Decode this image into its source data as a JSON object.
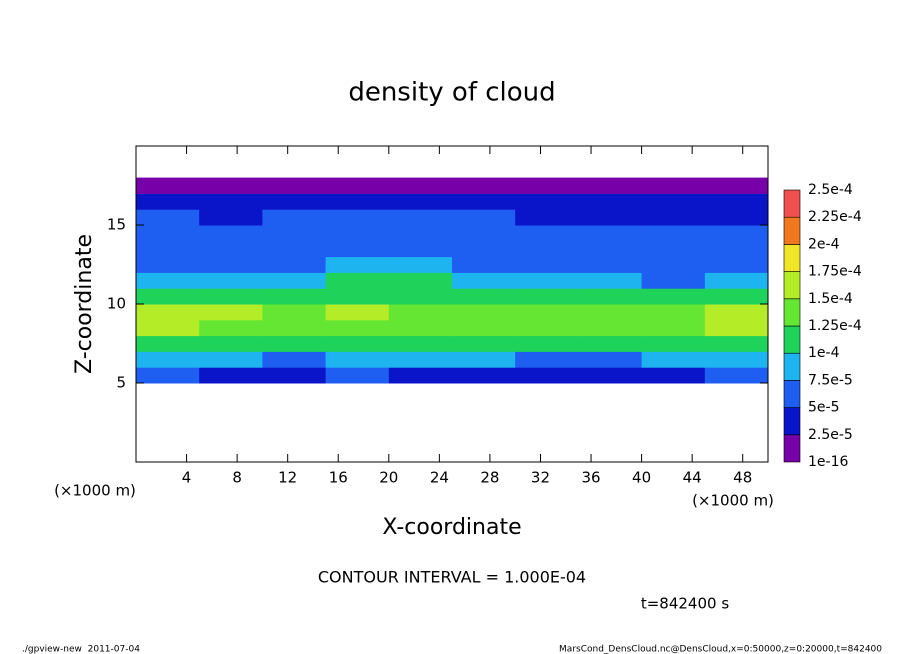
{
  "chart_data": {
    "type": "heatmap",
    "title": "density of cloud",
    "xlabel": "X-coordinate",
    "ylabel": "Z-coordinate",
    "x_unit": "(×1000 m)",
    "y_unit": "(×1000 m)",
    "xlim": [
      0,
      50
    ],
    "ylim": [
      0,
      20
    ],
    "xticks": [
      4,
      8,
      12,
      16,
      20,
      24,
      28,
      32,
      36,
      40,
      44,
      48
    ],
    "yticks": [
      5,
      10,
      15
    ],
    "xbins": [
      0,
      5,
      10,
      15,
      20,
      25,
      30,
      35,
      40,
      45,
      50
    ],
    "zbins": [
      0,
      1,
      2,
      3,
      4,
      5,
      6,
      7,
      8,
      9,
      10,
      11,
      12,
      13,
      14,
      15,
      16,
      17,
      18,
      19,
      20
    ],
    "values": [
      [
        null,
        null,
        null,
        null,
        null,
        null,
        null,
        null,
        null,
        null
      ],
      [
        null,
        null,
        null,
        null,
        null,
        null,
        null,
        null,
        null,
        null
      ],
      [
        null,
        null,
        null,
        null,
        null,
        null,
        null,
        null,
        null,
        null
      ],
      [
        null,
        null,
        null,
        null,
        null,
        null,
        null,
        null,
        null,
        null
      ],
      [
        null,
        null,
        null,
        null,
        null,
        null,
        null,
        null,
        null,
        null
      ],
      [
        5e-05,
        4e-05,
        4e-05,
        5e-05,
        4e-05,
        4e-05,
        3e-05,
        3e-05,
        4e-05,
        5e-05
      ],
      [
        8e-05,
        8e-05,
        7e-05,
        8e-05,
        8e-05,
        8e-05,
        7e-05,
        7e-05,
        8e-05,
        8e-05
      ],
      [
        0.00011,
        0.000105,
        0.000105,
        0.00011,
        0.000105,
        0.000105,
        0.0001,
        0.000105,
        0.00011,
        0.00011
      ],
      [
        0.00016,
        0.000145,
        0.00014,
        0.000145,
        0.00014,
        0.00014,
        0.000135,
        0.00014,
        0.000145,
        0.000155
      ],
      [
        0.000155,
        0.00015,
        0.00014,
        0.00015,
        0.00014,
        0.000135,
        0.00013,
        0.000135,
        0.00014,
        0.00015
      ],
      [
        0.00012,
        0.000115,
        0.00011,
        0.000115,
        0.000115,
        0.00011,
        0.000105,
        0.000105,
        0.000105,
        0.000115
      ],
      [
        8e-05,
        8e-05,
        9e-05,
        0.0001,
        0.0001,
        9e-05,
        8e-05,
        8e-05,
        7e-05,
        8e-05
      ],
      [
        7e-05,
        7e-05,
        7e-05,
        8e-05,
        8e-05,
        7e-05,
        7e-05,
        7e-05,
        6e-05,
        6e-05
      ],
      [
        6e-05,
        6e-05,
        7e-05,
        7e-05,
        7e-05,
        7e-05,
        6e-05,
        6e-05,
        6e-05,
        6e-05
      ],
      [
        6e-05,
        5e-05,
        6e-05,
        6e-05,
        6e-05,
        6e-05,
        5e-05,
        5e-05,
        5e-05,
        5e-05
      ],
      [
        5e-05,
        4e-05,
        5e-05,
        5e-05,
        5e-05,
        5e-05,
        4e-05,
        4e-05,
        4e-05,
        4e-05
      ],
      [
        3e-05,
        3e-05,
        3e-05,
        3e-05,
        3e-05,
        3e-05,
        3e-05,
        3e-05,
        3e-05,
        3e-05
      ],
      [
        1e-05,
        1e-05,
        1e-05,
        1e-05,
        1e-05,
        1e-05,
        1e-05,
        1e-05,
        1e-05,
        1e-05
      ],
      [
        null,
        null,
        null,
        null,
        null,
        null,
        null,
        null,
        null,
        null
      ],
      [
        null,
        null,
        null,
        null,
        null,
        null,
        null,
        null,
        null,
        null
      ]
    ],
    "levels": [
      {
        "value": 1e-16,
        "label": "1e-16"
      },
      {
        "value": 2.5e-05,
        "label": "2.5e-5"
      },
      {
        "value": 5e-05,
        "label": "5e-5"
      },
      {
        "value": 7.5e-05,
        "label": "7.5e-5"
      },
      {
        "value": 0.0001,
        "label": "1e-4"
      },
      {
        "value": 0.000125,
        "label": "1.25e-4"
      },
      {
        "value": 0.00015,
        "label": "1.5e-4"
      },
      {
        "value": 0.000175,
        "label": "1.75e-4"
      },
      {
        "value": 0.0002,
        "label": "2e-4"
      },
      {
        "value": 0.000225,
        "label": "2.25e-4"
      },
      {
        "value": 0.00025,
        "label": "2.5e-4"
      }
    ],
    "colors": [
      "#7800a8",
      "#0a14c8",
      "#1e5ef0",
      "#1eb4f0",
      "#1ed25a",
      "#64e632",
      "#b4ec28",
      "#f0e628",
      "#f0781e",
      "#f05050"
    ],
    "contour_note": "CONTOUR INTERVAL = 1.000E-04",
    "time_label": "t=842400 s",
    "footer_left": "./gpview-new  2011-07-04",
    "footer_right": "MarsCond_DensCloud.nc@DensCloud,x=0:50000,z=0:20000,t=842400"
  }
}
